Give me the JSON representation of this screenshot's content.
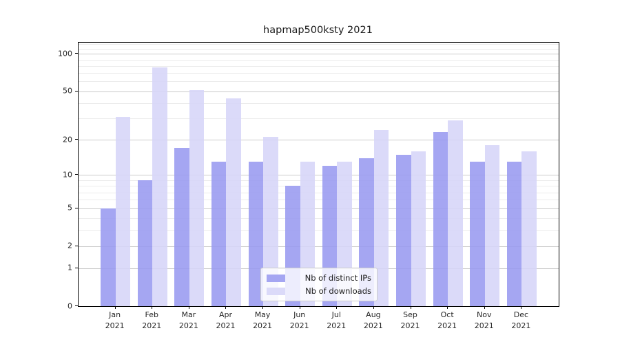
{
  "figure": {
    "background": "#ffffff",
    "spine_color": "#000000",
    "major_grid_color": "#c9c9c9",
    "minor_grid_color": "#ebebeb"
  },
  "chart_data": {
    "type": "bar",
    "title": "hapmap500ksty 2021",
    "xlabel": "",
    "ylabel": "",
    "categories": [
      "Jan",
      "Feb",
      "Mar",
      "Apr",
      "May",
      "Jun",
      "Jul",
      "Aug",
      "Sep",
      "Oct",
      "Nov",
      "Dec"
    ],
    "x_tick_year": "2021",
    "series": [
      {
        "name": "Nb of distinct IPs",
        "color": "#999af0",
        "values": [
          5,
          9,
          17,
          13,
          13,
          8,
          12,
          14,
          15,
          23,
          13,
          13
        ]
      },
      {
        "name": "Nb of downloads",
        "color": "#d6d5f8",
        "values": [
          31,
          78,
          51,
          44,
          21,
          13,
          13,
          24,
          16,
          29,
          18,
          16
        ]
      }
    ],
    "yscale": "log1p",
    "y_major_ticks": [
      0,
      1,
      2,
      5,
      10,
      20,
      50,
      100
    ],
    "y_minor_gridlines": [
      3,
      4,
      6,
      7,
      8,
      9,
      30,
      40,
      60,
      70,
      80,
      90,
      110,
      120
    ],
    "ylim": [
      0,
      122
    ],
    "grid": true,
    "legend_position": "lower center"
  }
}
